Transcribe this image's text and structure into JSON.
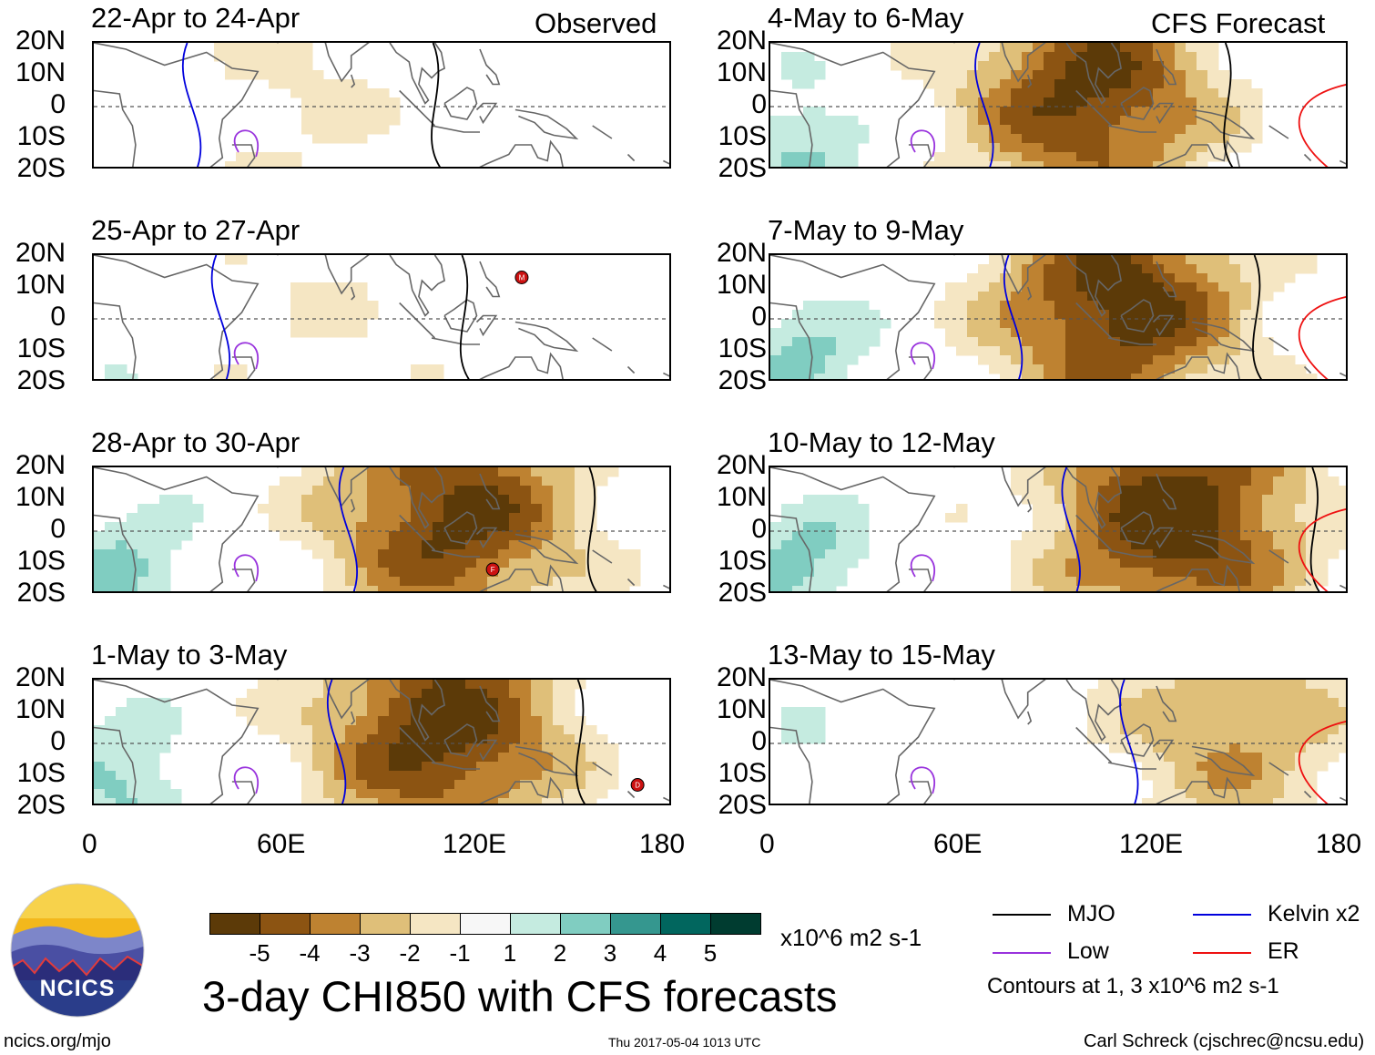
{
  "header": {
    "observed_label": "Observed",
    "forecast_label": "CFS Forecast"
  },
  "panels": [
    {
      "title": "22-Apr to 24-Apr",
      "col": "left",
      "row": 0,
      "intensity": 0.2,
      "center": 0.35
    },
    {
      "title": "25-Apr to 27-Apr",
      "col": "left",
      "row": 1,
      "intensity": 0.15,
      "center": 0.4
    },
    {
      "title": "28-Apr to 30-Apr",
      "col": "left",
      "row": 2,
      "intensity": 0.9,
      "center": 0.62
    },
    {
      "title": "1-May to 3-May",
      "col": "left",
      "row": 3,
      "intensity": 0.95,
      "center": 0.6
    },
    {
      "title": "4-May to 6-May",
      "col": "right",
      "row": 0,
      "intensity": 0.9,
      "center": 0.55
    },
    {
      "title": "7-May to 9-May",
      "col": "right",
      "row": 1,
      "intensity": 0.95,
      "center": 0.6
    },
    {
      "title": "10-May to 12-May",
      "col": "right",
      "row": 2,
      "intensity": 1.0,
      "center": 0.7
    },
    {
      "title": "13-May to 15-May",
      "col": "right",
      "row": 3,
      "intensity": 0.5,
      "center": 0.8
    }
  ],
  "axes": {
    "lat_labels": [
      "20N",
      "10N",
      "0",
      "10S",
      "20S"
    ],
    "lon_labels": [
      "0",
      "60E",
      "120E",
      "180"
    ]
  },
  "storm_markers": [
    {
      "label": "M",
      "panel": 1,
      "lon_deg": 133,
      "lat_deg": 13
    },
    {
      "label": "F",
      "panel": 2,
      "lon_deg": 124,
      "lat_deg": -12
    },
    {
      "label": "D",
      "panel": 3,
      "lon_deg": 169,
      "lat_deg": -13
    }
  ],
  "colorbar": {
    "ticks": [
      "-5",
      "-4",
      "-3",
      "-2",
      "-1",
      "1",
      "2",
      "3",
      "4",
      "5"
    ],
    "colors": [
      "#5c3a08",
      "#8c5412",
      "#be8231",
      "#dfbf79",
      "#f5e6c3",
      "#f7f7f7",
      "#c5ebe0",
      "#80cdc1",
      "#35978f",
      "#01665e",
      "#003c30"
    ],
    "units": "x10^6 m2 s-1"
  },
  "title": "3-day CHI850 with CFS forecasts",
  "legend": {
    "items": [
      {
        "label": "MJO",
        "color": "#000000"
      },
      {
        "label": "Kelvin x2",
        "color": "#0000dd"
      },
      {
        "label": "Low",
        "color": "#9933dd"
      },
      {
        "label": "ER",
        "color": "#ee1111"
      }
    ],
    "note": "Contours at 1, 3 x10^6 m2 s-1"
  },
  "logo": {
    "text": "NCICS"
  },
  "footer": {
    "url": "ncics.org/mjo",
    "timestamp": "Thu 2017-05-04 1013 UTC",
    "credit": "Carl Schreck (cjschrec@ncsu.edu)"
  }
}
